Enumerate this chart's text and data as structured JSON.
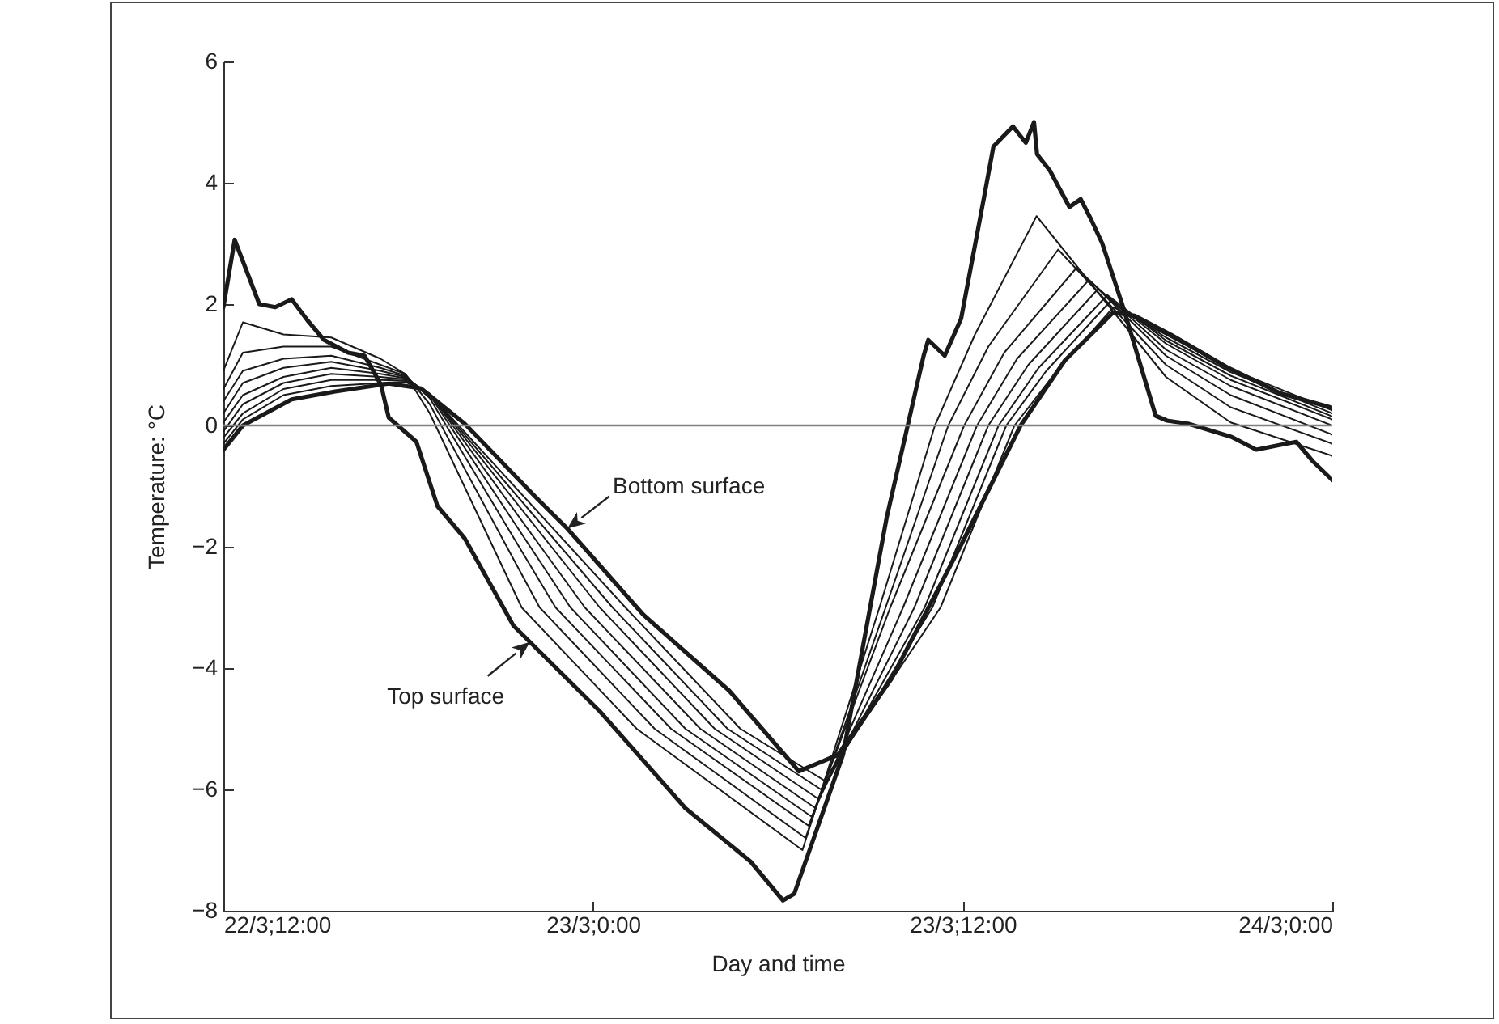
{
  "chart_data": {
    "type": "line",
    "xlabel": "Day and time",
    "ylabel": "Temperature: °C",
    "xlim": [
      "--03-22T12:00",
      "--03-24T00:00"
    ],
    "xticks": [
      {
        "value": "--03-22T12:00",
        "label": "22/3;12:00"
      },
      {
        "value": "--03-23T00:00",
        "label": "23/3;0:00"
      },
      {
        "value": "--03-23T12:00",
        "label": "23/3;12:00"
      },
      {
        "value": "--03-24T00:00",
        "label": "24/3;0:00"
      }
    ],
    "ylim": [
      -8,
      6
    ],
    "yticks": [
      -8,
      -6,
      -4,
      -2,
      0,
      2,
      4,
      6
    ],
    "marker": "none",
    "line_style": "solid",
    "ref_lines": [
      {
        "axis": "y",
        "value": 0,
        "color": "#808080"
      }
    ],
    "annotations": [
      {
        "text": "Bottom surface",
        "x": "--03-22T23:10",
        "y": -1.7
      },
      {
        "text": "Top surface",
        "x": "--03-22T21:57",
        "y": -3.57
      }
    ],
    "series": [
      {
        "color": "#1a1a1a",
        "x": [
          "--03-22T12:00",
          "--03-22T12:22",
          "--03-22T13:10",
          "--03-22T13:41",
          "--03-22T14:13",
          "--03-22T14:44",
          "--03-22T15:16",
          "--03-22T16:03",
          "--03-22T16:35",
          "--03-22T17:07",
          "--03-22T17:22",
          "--03-22T18:16",
          "--03-22T18:57",
          "--03-22T19:50",
          "--03-22T21:25",
          "--03-23T00:13",
          "--03-23T03:00",
          "--03-23T05:07",
          "--03-23T06:10",
          "--03-23T06:32",
          "--03-23T08:07",
          "--03-23T09:32",
          "--03-23T10:13",
          "--03-23T10:44",
          "--03-23T10:53",
          "--03-23T11:25",
          "--03-23T11:57",
          "--03-23T12:41",
          "--03-23T13:00",
          "--03-23T13:38",
          "--03-23T14:03",
          "--03-23T14:19",
          "--03-23T14:25",
          "--03-23T14:50",
          "--03-23T15:28",
          "--03-23T15:50",
          "--03-23T16:10",
          "--03-23T16:32",
          "--03-23T17:13",
          "--03-23T18:16",
          "--03-23T18:38",
          "--03-23T19:19",
          "--03-23T20:44",
          "--03-23T21:32",
          "--03-23T22:19",
          "--03-23T22:50",
          "--03-23T23:22",
          "--03-24T00:00"
        ],
        "values": [
          1.95,
          3.06,
          2.0,
          1.95,
          2.08,
          1.73,
          1.41,
          1.2,
          1.15,
          0.67,
          0.13,
          -0.27,
          -1.33,
          -1.86,
          -3.3,
          -4.71,
          -6.31,
          -7.19,
          -7.83,
          -7.72,
          -5.43,
          -1.52,
          0,
          1.15,
          1.41,
          1.15,
          1.76,
          3.73,
          4.6,
          4.93,
          4.66,
          5.0,
          4.47,
          4.2,
          3.6,
          3.73,
          3.4,
          3.0,
          1.94,
          0.16,
          0.08,
          0.03,
          -0.19,
          -0.4,
          -0.32,
          -0.27,
          -0.59,
          -0.9
        ]
      },
      {
        "color": "#1a1a1a",
        "x": [
          "--03-22T12:00",
          "--03-22T12:38",
          "--03-22T13:57",
          "--03-22T15:30",
          "--03-22T17:06",
          "--03-22T17:54",
          "--03-22T18:42",
          "--03-22T21:41",
          "--03-23T01:25",
          "--03-23T06:48",
          "--03-23T09:18",
          "--03-23T11:06",
          "--03-23T12:24",
          "--03-23T14:24",
          "--03-23T18:36",
          "--03-23T20:42",
          "--03-24T00:00"
        ],
        "values": [
          0.9,
          1.7,
          1.5,
          1.45,
          1.1,
          0.85,
          0.2,
          -3,
          -5,
          -7.0,
          -3,
          0,
          1.5,
          3.45,
          0.8,
          0.05,
          -0.5
        ]
      },
      {
        "color": "#1a1a1a",
        "x": [
          "--03-22T12:00",
          "--03-22T12:38",
          "--03-22T13:57",
          "--03-22T15:30",
          "--03-22T17:06",
          "--03-22T17:54",
          "--03-22T18:42",
          "--03-22T22:16",
          "--03-23T02:00",
          "--03-23T06:54",
          "--03-23T09:30",
          "--03-23T11:32",
          "--03-23T12:50",
          "--03-23T15:06",
          "--03-23T18:36",
          "--03-23T20:42",
          "--03-24T00:00"
        ],
        "values": [
          0.6,
          1.2,
          1.3,
          1.3,
          1.0,
          0.85,
          0.35,
          -3,
          -5,
          -6.8,
          -3,
          0,
          1.3,
          2.9,
          1.0,
          0.3,
          -0.3
        ]
      },
      {
        "color": "#1a1a1a",
        "x": [
          "--03-22T12:00",
          "--03-22T12:38",
          "--03-22T13:57",
          "--03-22T15:30",
          "--03-22T17:06",
          "--03-22T17:54",
          "--03-22T18:42",
          "--03-22T22:47",
          "--03-23T02:32",
          "--03-23T07:00",
          "--03-23T09:39",
          "--03-23T12:03",
          "--03-23T13:21",
          "--03-23T15:42",
          "--03-23T18:36",
          "--03-23T20:42",
          "--03-24T00:00"
        ],
        "values": [
          0.4,
          0.9,
          1.1,
          1.15,
          0.95,
          0.82,
          0.45,
          -3,
          -5,
          -6.6,
          -3,
          0,
          1.2,
          2.6,
          1.15,
          0.5,
          -0.15
        ]
      },
      {
        "color": "#1a1a1a",
        "x": [
          "--03-22T12:00",
          "--03-22T12:38",
          "--03-22T13:57",
          "--03-22T15:30",
          "--03-22T17:06",
          "--03-22T17:54",
          "--03-22T18:42",
          "--03-22T23:16",
          "--03-23T03:00",
          "--03-23T07:06",
          "--03-23T10:04",
          "--03-23T12:28",
          "--03-23T13:46",
          "--03-23T16:06",
          "--03-23T18:36",
          "--03-23T20:42",
          "--03-24T00:00"
        ],
        "values": [
          0.2,
          0.7,
          0.95,
          1.05,
          0.9,
          0.8,
          0.5,
          -3,
          -5,
          -6.45,
          -3,
          0,
          1.1,
          2.4,
          1.25,
          0.65,
          0
        ]
      },
      {
        "color": "#1a1a1a",
        "x": [
          "--03-22T12:00",
          "--03-22T12:38",
          "--03-22T13:57",
          "--03-22T15:30",
          "--03-22T17:06",
          "--03-22T17:54",
          "--03-22T18:42",
          "--03-22T23:44",
          "--03-23T03:29",
          "--03-23T07:12",
          "--03-23T10:26",
          "--03-23T12:50",
          "--03-23T14:08",
          "--03-23T16:24",
          "--03-23T18:36",
          "--03-23T20:42",
          "--03-24T00:00"
        ],
        "values": [
          0.05,
          0.5,
          0.8,
          0.95,
          0.85,
          0.78,
          0.52,
          -3,
          -5,
          -6.3,
          -3,
          0,
          1.0,
          2.25,
          1.35,
          0.75,
          0.1
        ]
      },
      {
        "color": "#1a1a1a",
        "x": [
          "--03-22T12:00",
          "--03-22T12:38",
          "--03-22T13:57",
          "--03-22T15:30",
          "--03-22T17:06",
          "--03-22T17:54",
          "--03-22T18:42",
          "--03-23T00:13",
          "--03-23T03:57",
          "--03-23T07:18",
          "--03-23T10:46",
          "--03-23T13:10",
          "--03-23T14:28",
          "--03-23T16:42",
          "--03-23T18:36",
          "--03-23T20:42",
          "--03-24T00:00"
        ],
        "values": [
          -0.1,
          0.35,
          0.7,
          0.85,
          0.8,
          0.76,
          0.52,
          -3,
          -5,
          -6.15,
          -3,
          0,
          0.95,
          2.15,
          1.4,
          0.82,
          0.15
        ]
      },
      {
        "color": "#1a1a1a",
        "x": [
          "--03-22T12:00",
          "--03-22T12:38",
          "--03-22T13:57",
          "--03-22T15:30",
          "--03-22T17:06",
          "--03-22T17:54",
          "--03-22T18:42",
          "--03-23T00:38",
          "--03-23T04:22",
          "--03-23T07:24",
          "--03-23T11:01",
          "--03-23T13:25",
          "--03-23T14:43",
          "--03-23T16:48",
          "--03-23T18:36",
          "--03-23T20:42",
          "--03-24T00:00"
        ],
        "values": [
          -0.2,
          0.2,
          0.6,
          0.75,
          0.75,
          0.74,
          0.52,
          -3,
          -5,
          -6.0,
          -3,
          0,
          0.9,
          2.05,
          1.45,
          0.88,
          0.2
        ]
      },
      {
        "color": "#1a1a1a",
        "x": [
          "--03-22T12:00",
          "--03-22T12:38",
          "--03-22T13:57",
          "--03-22T15:30",
          "--03-22T17:06",
          "--03-22T17:54",
          "--03-22T18:42",
          "--03-23T01:03",
          "--03-23T04:47",
          "--03-23T07:30",
          "--03-23T11:17",
          "--03-23T13:41",
          "--03-23T14:59",
          "--03-23T16:54",
          "--03-23T18:36",
          "--03-23T20:42",
          "--03-24T00:00"
        ],
        "values": [
          -0.3,
          0.1,
          0.5,
          0.65,
          0.7,
          0.72,
          0.52,
          -3,
          -5,
          -5.85,
          -3,
          0,
          0.85,
          1.95,
          1.5,
          0.93,
          0.25
        ]
      },
      {
        "color": "#1a1a1a",
        "x": [
          "--03-22T12:00",
          "--03-22T12:38",
          "--03-22T14:13",
          "--03-22T15:38",
          "--03-22T17:22",
          "--03-22T18:25",
          "--03-22T19:50",
          "--03-22T22:07",
          "--03-22T23:10",
          "--03-23T01:38",
          "--03-23T04:25",
          "--03-23T06:41",
          "--03-23T07:57",
          "--03-23T09:41",
          "--03-23T11:57",
          "--03-23T13:53",
          "--03-23T15:19",
          "--03-23T16:53",
          "--03-23T17:35",
          "--03-23T18:47",
          "--03-23T20:35",
          "--03-23T22:19",
          "--03-24T00:00"
        ],
        "values": [
          -0.4,
          0,
          0.43,
          0.56,
          0.69,
          0.61,
          0.03,
          -1.17,
          -1.7,
          -3.12,
          -4.37,
          -5.7,
          -5.43,
          -4.18,
          -1.97,
          0,
          1.07,
          1.86,
          1.81,
          1.49,
          0.96,
          0.53,
          0.29
        ]
      }
    ]
  }
}
